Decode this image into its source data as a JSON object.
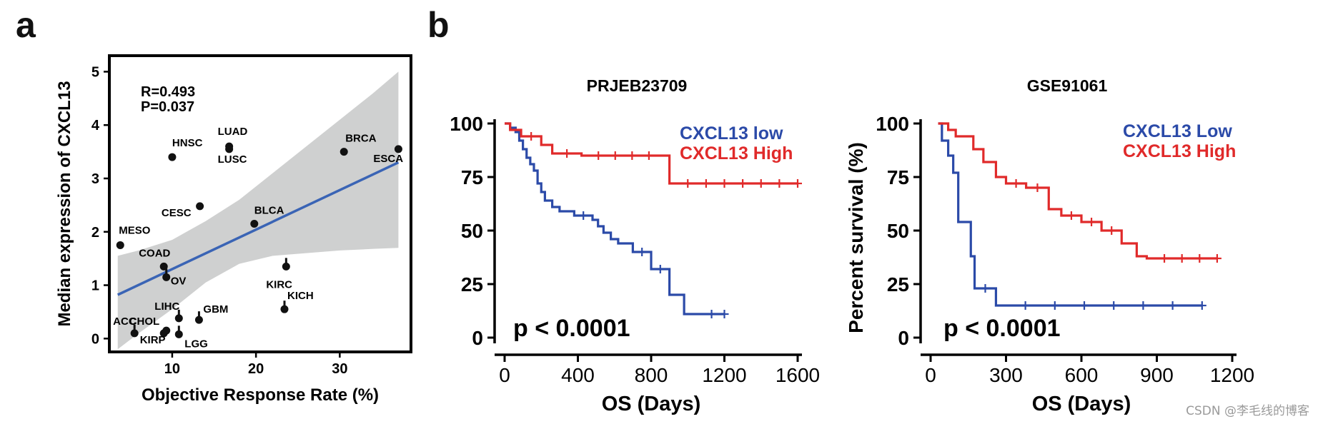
{
  "panels": {
    "a_label": "a",
    "b_label": "b"
  },
  "watermark": "CSDN @李毛线的博客",
  "chart_data": [
    {
      "type": "scatter",
      "id": "a",
      "xlabel": "Objective Response Rate (%)",
      "ylabel": "Median expression of CXCL13",
      "xlim": [
        2.5,
        38.5
      ],
      "ylim": [
        -0.25,
        5.3
      ],
      "xticks": [
        10,
        20,
        30
      ],
      "yticks": [
        0,
        1,
        2,
        3,
        4,
        5
      ],
      "stats": [
        "R=0.493",
        "P=0.037"
      ],
      "regression": {
        "x": [
          3.5,
          37
        ],
        "y": [
          0.82,
          3.3
        ]
      },
      "ci_band": {
        "x": [
          3.5,
          6,
          10,
          14,
          18,
          22,
          26,
          30,
          34,
          37
        ],
        "upper": [
          1.55,
          1.65,
          1.85,
          2.2,
          2.6,
          3.1,
          3.6,
          4.1,
          4.6,
          5.0
        ],
        "lower": [
          -0.2,
          0.1,
          0.55,
          1.05,
          1.4,
          1.55,
          1.6,
          1.65,
          1.68,
          1.7
        ]
      },
      "points": [
        {
          "label": "ACC",
          "x": 5.5,
          "y": 0.1
        },
        {
          "label": "CHOL",
          "x": 9.0,
          "y": 0.1
        },
        {
          "label": "KIRP",
          "x": 9.3,
          "y": 0.15
        },
        {
          "label": "LGG",
          "x": 10.8,
          "y": 0.08
        },
        {
          "label": "LIHC",
          "x": 10.8,
          "y": 0.38
        },
        {
          "label": "GBM",
          "x": 13.2,
          "y": 0.35
        },
        {
          "label": "OV",
          "x": 9.3,
          "y": 1.15
        },
        {
          "label": "COAD",
          "x": 9.0,
          "y": 1.35
        },
        {
          "label": "MESO",
          "x": 3.8,
          "y": 1.75
        },
        {
          "label": "CESC",
          "x": 13.3,
          "y": 2.48
        },
        {
          "label": "HNSC",
          "x": 10.0,
          "y": 3.4
        },
        {
          "label": "LUAD",
          "x": 16.8,
          "y": 3.6
        },
        {
          "label": "LUSC",
          "x": 16.8,
          "y": 3.55
        },
        {
          "label": "BLCA",
          "x": 19.8,
          "y": 2.15
        },
        {
          "label": "KIRC",
          "x": 23.6,
          "y": 1.35
        },
        {
          "label": "KICH",
          "x": 23.4,
          "y": 0.55
        },
        {
          "label": "BRCA",
          "x": 30.5,
          "y": 3.5
        },
        {
          "label": "ESCA",
          "x": 37.0,
          "y": 3.55
        }
      ]
    },
    {
      "type": "line",
      "id": "b1",
      "title": "PRJEB23709",
      "xlabel": "OS (Days)",
      "ylabel": "",
      "xlim": [
        0,
        1600
      ],
      "ylim": [
        0,
        100
      ],
      "xticks": [
        0,
        400,
        800,
        1200,
        1600
      ],
      "yticks": [
        0,
        25,
        50,
        75,
        100
      ],
      "annotation": "p < 0.0001",
      "series": [
        {
          "name": "CXCL13 low",
          "color": "#2b4aa8",
          "x": [
            0,
            30,
            60,
            80,
            100,
            120,
            140,
            160,
            180,
            200,
            220,
            260,
            300,
            380,
            480,
            510,
            540,
            580,
            620,
            700,
            800,
            900,
            980,
            1060,
            1200
          ],
          "y": [
            100,
            98,
            96,
            92,
            88,
            84,
            81,
            78,
            72,
            68,
            64,
            61,
            59,
            57,
            55,
            52,
            49,
            46,
            44,
            40,
            32,
            20,
            11,
            11,
            11
          ]
        },
        {
          "name": "CXCL13 High",
          "color": "#e02a2a",
          "x": [
            0,
            30,
            90,
            200,
            260,
            420,
            880,
            900,
            1600
          ],
          "y": [
            100,
            97,
            94,
            90,
            86,
            85,
            85,
            72,
            72
          ]
        }
      ]
    },
    {
      "type": "line",
      "id": "b2",
      "title": "GSE91061",
      "xlabel": "OS (Days)",
      "ylabel": "Percent survival (%)",
      "xlim": [
        0,
        1200
      ],
      "ylim": [
        0,
        100
      ],
      "xticks": [
        0,
        300,
        600,
        900,
        1200
      ],
      "yticks": [
        0,
        25,
        50,
        75,
        100
      ],
      "annotation": "p < 0.0001",
      "series": [
        {
          "name": "CXCL13 Low",
          "color": "#2b4aa8",
          "x": [
            30,
            45,
            70,
            90,
            110,
            150,
            160,
            175,
            260,
            1080
          ],
          "y": [
            100,
            92,
            85,
            77,
            54,
            54,
            38,
            23,
            15,
            15
          ]
        },
        {
          "name": "CXCL13 High",
          "color": "#e02a2a",
          "x": [
            30,
            70,
            100,
            170,
            210,
            260,
            300,
            380,
            470,
            520,
            600,
            680,
            760,
            820,
            860,
            1140
          ],
          "y": [
            100,
            97,
            94,
            88,
            82,
            75,
            72,
            70,
            60,
            57,
            54,
            50,
            44,
            38,
            37,
            37
          ]
        }
      ]
    }
  ]
}
